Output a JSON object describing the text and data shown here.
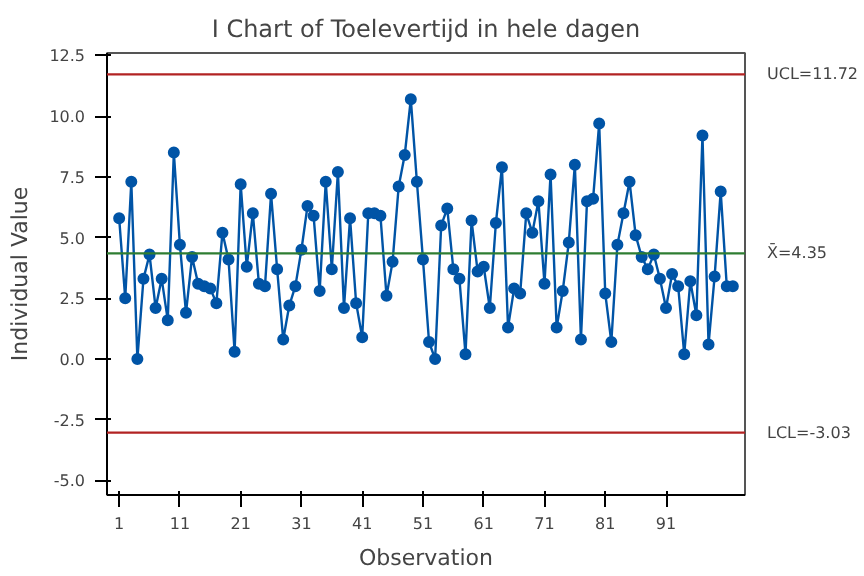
{
  "chart_data": {
    "type": "line",
    "title": "I Chart of Toelevertijd in hele dagen",
    "xlabel": "Observation",
    "ylabel": "Individual Value",
    "x": [
      1,
      2,
      3,
      4,
      5,
      6,
      7,
      8,
      9,
      10,
      11,
      12,
      13,
      14,
      15,
      16,
      17,
      18,
      19,
      20,
      21,
      22,
      23,
      24,
      25,
      26,
      27,
      28,
      29,
      30,
      31,
      32,
      33,
      34,
      35,
      36,
      37,
      38,
      39,
      40,
      41,
      42,
      43,
      44,
      45,
      46,
      47,
      48,
      49,
      50,
      51,
      52,
      53,
      54,
      55,
      56,
      57,
      58,
      59,
      60,
      61,
      62,
      63,
      64,
      65,
      66,
      67,
      68,
      69,
      70,
      71,
      72,
      73,
      74,
      75,
      76,
      77,
      78,
      79,
      80,
      81,
      82,
      83,
      84,
      85,
      86,
      87,
      88,
      89,
      90,
      91,
      92,
      93,
      94,
      95,
      96,
      97,
      98,
      99,
      100,
      101,
      102
    ],
    "series": [
      {
        "color": "#0054a6",
        "values": [
          5.8,
          2.5,
          7.3,
          0.0,
          3.3,
          4.3,
          2.1,
          3.3,
          1.6,
          8.5,
          4.7,
          1.9,
          4.2,
          3.1,
          3.0,
          2.9,
          2.3,
          5.2,
          4.1,
          0.3,
          7.2,
          3.8,
          6.0,
          3.1,
          3.0,
          6.8,
          3.7,
          0.8,
          2.2,
          3.0,
          4.5,
          6.3,
          5.9,
          2.8,
          7.3,
          3.7,
          7.7,
          2.1,
          5.8,
          2.3,
          0.9,
          6.0,
          6.0,
          5.9,
          2.6,
          4.0,
          7.1,
          8.4,
          10.7,
          7.3,
          4.1,
          0.7,
          0.0,
          5.5,
          6.2,
          3.7,
          3.3,
          0.2,
          5.7,
          3.6,
          3.8,
          2.1,
          5.6,
          7.9,
          1.3,
          2.9,
          2.7,
          6.0,
          5.2,
          6.5,
          3.1,
          7.6,
          1.3,
          2.8,
          4.8,
          8.0,
          0.8,
          6.5,
          6.6,
          9.7,
          2.7,
          0.7,
          4.7,
          6.0,
          7.3,
          5.1,
          4.2,
          3.7,
          4.3,
          3.3,
          2.1,
          3.5,
          3.0,
          0.2,
          3.2,
          1.8,
          9.2,
          0.6,
          3.4,
          6.9,
          3.0,
          3.0
        ]
      }
    ],
    "xlim": [
      -1,
      104
    ],
    "xticks": [
      1,
      11,
      21,
      31,
      41,
      51,
      61,
      71,
      81,
      91
    ],
    "ylim": [
      -5.6,
      12.6
    ],
    "yticks": [
      {
        "value": -5,
        "label": "-5.0"
      },
      {
        "value": -2.5,
        "label": "-2.5"
      },
      {
        "value": 0,
        "label": "0.0"
      },
      {
        "value": 2.5,
        "label": "2.5"
      },
      {
        "value": 5,
        "label": "5.0"
      },
      {
        "value": 7.5,
        "label": "7.5"
      },
      {
        "value": 10,
        "label": "10.0"
      },
      {
        "value": 12.5,
        "label": "12.5"
      }
    ],
    "ref_lines": [
      {
        "axis": "y",
        "value": 11.72,
        "label": "UCL=11.72",
        "color": "#b22222"
      },
      {
        "axis": "y",
        "value": 4.35,
        "label": "X̄=4.35",
        "color": "#2e7d32"
      },
      {
        "axis": "y",
        "value": -3.03,
        "label": "LCL=-3.03",
        "color": "#b22222"
      }
    ],
    "marker": "circle",
    "line_style": "solid",
    "grid": false
  }
}
